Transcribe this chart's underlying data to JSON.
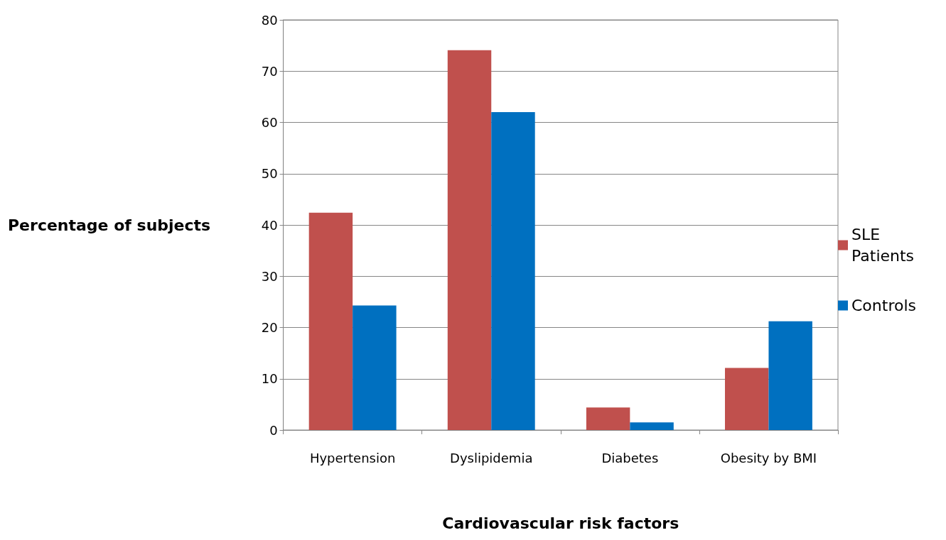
{
  "chart_data": {
    "type": "bar",
    "xlabel": "Cardiovascular risk factors",
    "ylabel": "Percentage of subjects",
    "categories": [
      "Hypertension",
      "Dyslipidemia",
      "Diabetes",
      "Obesity by BMI"
    ],
    "series": [
      {
        "name": "SLE Patients",
        "color": "#c0504d",
        "values": [
          42.4,
          74.1,
          4.4,
          12.1
        ]
      },
      {
        "name": "Controls",
        "color": "#0070c0",
        "values": [
          24.3,
          62.0,
          1.5,
          21.2
        ]
      }
    ],
    "ylim": [
      0,
      80
    ],
    "yticks": [
      0,
      10,
      20,
      30,
      40,
      50,
      60,
      70,
      80
    ],
    "grid": "y",
    "legend": "right"
  }
}
